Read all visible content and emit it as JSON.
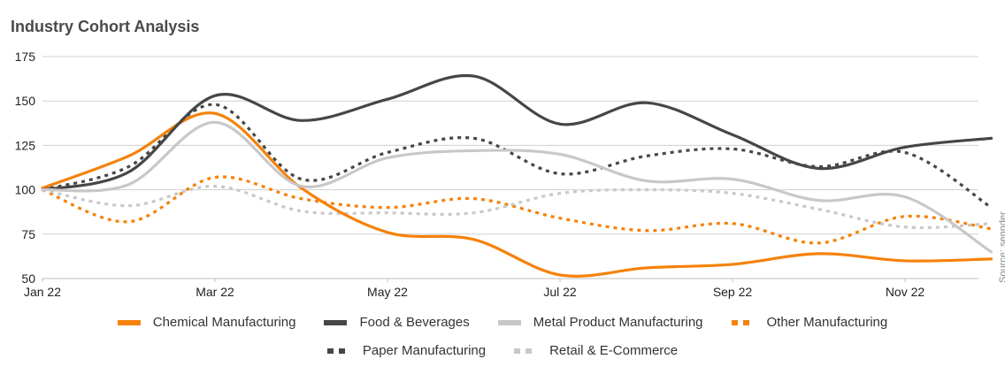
{
  "chart_data": {
    "type": "line",
    "title": "Industry Cohort Analysis",
    "xlabel": "",
    "ylabel": "",
    "ylim": [
      50,
      175
    ],
    "yticks": [
      50,
      75,
      100,
      125,
      150,
      175
    ],
    "x_tick_labels": [
      "Jan 22",
      "Mar 22",
      "May 22",
      "Jul 22",
      "Sep 22",
      "Nov 22"
    ],
    "categories": [
      "Jan 22",
      "Feb 22",
      "Mar 22",
      "Apr 22",
      "May 22",
      "Jun 22",
      "Jul 22",
      "Aug 22",
      "Sep 22",
      "Oct 22",
      "Nov 22",
      "Dec 22"
    ],
    "grid": true,
    "legend_position": "bottom",
    "series": [
      {
        "name": "Chemical Manufacturing",
        "color": "#f5820a",
        "style": "solid",
        "values": [
          101,
          119,
          143,
          101,
          76,
          72,
          52,
          56,
          58,
          64,
          60,
          61
        ]
      },
      {
        "name": "Food & Beverages",
        "color": "#464646",
        "style": "solid",
        "values": [
          100,
          110,
          153,
          139,
          151,
          164,
          137,
          149,
          131,
          112,
          124,
          129
        ]
      },
      {
        "name": "Metal Product Manufacturing",
        "color": "#c8c8c8",
        "style": "solid",
        "values": [
          100,
          103,
          138,
          102,
          118,
          122,
          120,
          105,
          106,
          94,
          96,
          65
        ]
      },
      {
        "name": "Other Manufacturing",
        "color": "#f5820a",
        "style": "dotted",
        "values": [
          100,
          82,
          107,
          95,
          90,
          95,
          84,
          77,
          81,
          70,
          85,
          78
        ]
      },
      {
        "name": "Paper Manufacturing",
        "color": "#464646",
        "style": "dotted",
        "values": [
          100,
          113,
          148,
          106,
          121,
          129,
          109,
          119,
          123,
          113,
          121,
          90
        ]
      },
      {
        "name": "Retail & E-Commerce",
        "color": "#c8c8c8",
        "style": "dotted",
        "values": [
          100,
          91,
          102,
          88,
          87,
          87,
          98,
          100,
          98,
          89,
          79,
          81
        ]
      }
    ],
    "source": "Source: sennder"
  }
}
